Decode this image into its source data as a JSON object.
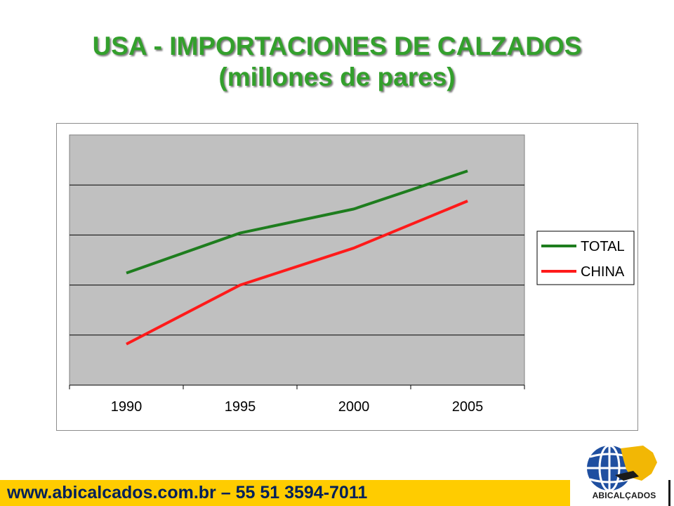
{
  "title": {
    "line1": "USA - IMPORTACIONES DE CALZADOS",
    "line2": "(millones de pares)"
  },
  "colors": {
    "title": "#33a02c",
    "plot_background": "#c0c0c0",
    "gridline": "#000000",
    "total_series": "#1e7d1e",
    "china_series": "#ff1a1a",
    "footer_band": "#ffcc00",
    "footer_text": "#00205a"
  },
  "chart_data": {
    "type": "line",
    "title": "",
    "xlabel": "",
    "ylabel": "",
    "categories": [
      "1990",
      "1995",
      "2000",
      "2005"
    ],
    "ylim": [
      0,
      2500
    ],
    "y_gridlines": [
      500,
      1000,
      1500,
      2000
    ],
    "y_tick_labels_shown": false,
    "grid": true,
    "legend_position": "right",
    "series": [
      {
        "name": "TOTAL",
        "color": "#1e7d1e",
        "values": [
          1120,
          1520,
          1760,
          2140
        ]
      },
      {
        "name": "CHINA",
        "color": "#ff1a1a",
        "values": [
          410,
          1000,
          1370,
          1840
        ]
      }
    ]
  },
  "footer": {
    "text": "www.abicalcados.com.br – 55 51 3594-7011"
  },
  "logo": {
    "name": "ABICALÇADOS",
    "icon": "globe-logo-icon"
  }
}
